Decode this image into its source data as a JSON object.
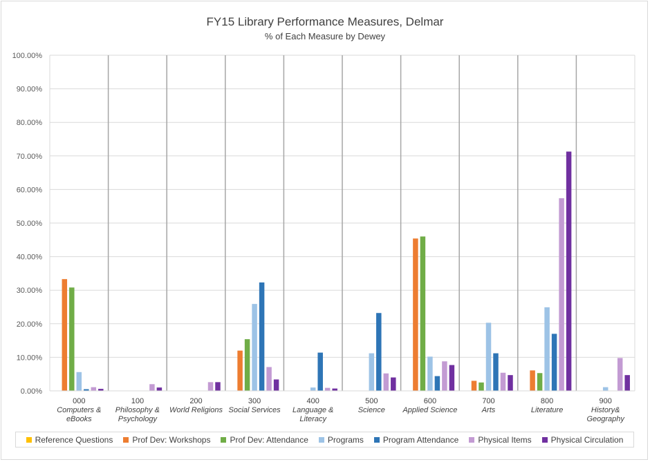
{
  "chart_data": {
    "type": "bar",
    "title": "FY15 Library Performance Measures, Delmar",
    "subtitle": "% of Each Measure by Dewey",
    "ylim": [
      0,
      100
    ],
    "y_ticks": [
      "0.00%",
      "10.00%",
      "20.00%",
      "30.00%",
      "40.00%",
      "50.00%",
      "60.00%",
      "70.00%",
      "80.00%",
      "90.00%",
      "100.00%"
    ],
    "categories": [
      [
        "000",
        "Computers &",
        "eBooks"
      ],
      [
        "100",
        "Philosophy &",
        "Psychology"
      ],
      [
        "200",
        "World Religions"
      ],
      [
        "300",
        "Social Services"
      ],
      [
        "400",
        "Language &",
        "Literacy"
      ],
      [
        "500",
        "Science"
      ],
      [
        "600",
        "Applied Science"
      ],
      [
        "700",
        "Arts"
      ],
      [
        "800",
        "Literature"
      ],
      [
        "900",
        "History&",
        "Geography"
      ]
    ],
    "series": [
      {
        "name": "Reference Questions",
        "color": "#ffc000",
        "values": [
          0,
          0,
          0,
          0,
          0,
          0,
          0,
          0,
          0,
          0
        ]
      },
      {
        "name": "Prof Dev: Workshops",
        "color": "#ed7d31",
        "values": [
          33.3,
          0,
          0,
          12.0,
          0,
          0,
          45.4,
          3.0,
          6.1,
          0
        ]
      },
      {
        "name": "Prof Dev: Attendance",
        "color": "#70ad47",
        "values": [
          30.8,
          0,
          0,
          15.4,
          0,
          0,
          46.0,
          2.5,
          5.3,
          0
        ]
      },
      {
        "name": "Programs",
        "color": "#9dc3e6",
        "values": [
          5.6,
          0,
          0,
          25.9,
          1.0,
          11.2,
          10.2,
          20.3,
          24.9,
          1.1
        ]
      },
      {
        "name": "Program Attendance",
        "color": "#2e75b6",
        "values": [
          0.5,
          0,
          0,
          32.3,
          11.4,
          23.2,
          4.4,
          11.2,
          17.0,
          0
        ]
      },
      {
        "name": "Physical Items",
        "color": "#c39bd3",
        "values": [
          1.1,
          2.0,
          2.6,
          7.1,
          0.9,
          5.2,
          8.8,
          5.4,
          57.4,
          9.8
        ]
      },
      {
        "name": "Physical Circulation",
        "color": "#7030a0",
        "values": [
          0.6,
          1.0,
          2.6,
          3.4,
          0.7,
          4.0,
          7.7,
          4.7,
          71.3,
          4.7
        ]
      }
    ],
    "grid": true,
    "legend_position": "bottom"
  }
}
